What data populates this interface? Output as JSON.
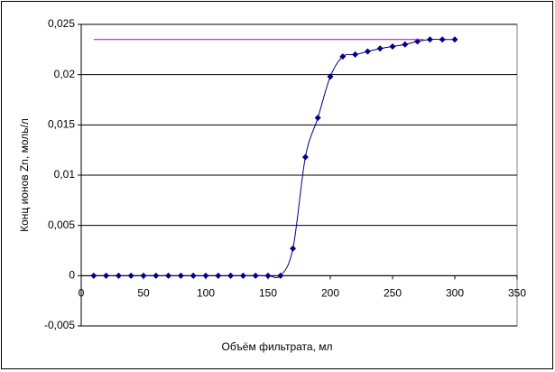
{
  "chart_data": {
    "type": "line",
    "x_label": "Объём фильтрата, мл",
    "y_label": "Конц ионов Zn, моль/л",
    "xlim": [
      0,
      350
    ],
    "xticks": [
      0,
      50,
      100,
      150,
      200,
      250,
      300,
      350
    ],
    "ylim": [
      -0.005,
      0.025
    ],
    "yticks": [
      {
        "value": -0.005,
        "label": "-0,005"
      },
      0,
      {
        "value": 0.005,
        "label": "0,005"
      },
      {
        "value": 0.01,
        "label": "0,01"
      },
      {
        "value": 0.015,
        "label": "0,015"
      },
      {
        "value": 0.02,
        "label": "0,02"
      },
      {
        "value": 0.025,
        "label": "0,025"
      }
    ],
    "grid": true,
    "series": [
      {
        "color": "#000080",
        "markers": true,
        "x": [
          10,
          20,
          30,
          40,
          50,
          60,
          70,
          80,
          90,
          100,
          110,
          120,
          130,
          140,
          150,
          160,
          170,
          180,
          190,
          200,
          210,
          220,
          230,
          240,
          250,
          260,
          270,
          280,
          290,
          300
        ],
        "values": [
          0,
          0,
          0,
          0,
          0,
          0,
          0,
          0,
          0,
          0,
          0,
          0,
          0,
          0,
          0,
          0,
          0.0027,
          0.0118,
          0.0157,
          0.0198,
          0.0218,
          0.022,
          0.0223,
          0.0226,
          0.0228,
          0.023,
          0.0233,
          0.0235,
          0.0235,
          0.0235
        ]
      },
      {
        "color": "#c000c0",
        "markers": false,
        "x": [
          10,
          275
        ],
        "values": [
          0.0235,
          0.0235
        ]
      }
    ]
  }
}
